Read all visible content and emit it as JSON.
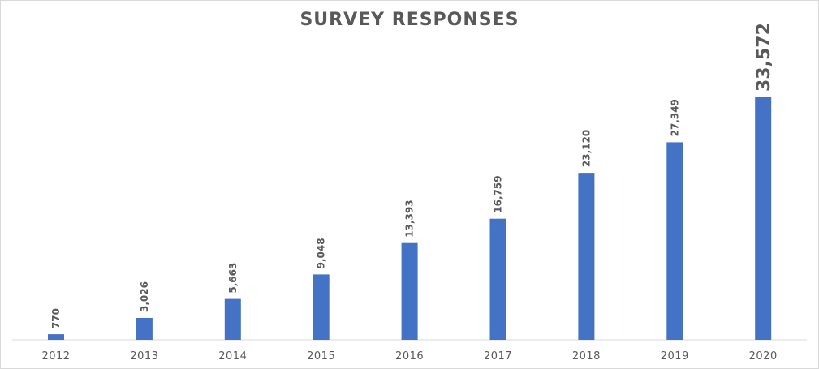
{
  "chart_data": {
    "type": "bar",
    "title": "SURVEY RESPONSES",
    "xlabel": "",
    "ylabel": "",
    "categories": [
      "2012",
      "2013",
      "2014",
      "2015",
      "2016",
      "2017",
      "2018",
      "2019",
      "2020"
    ],
    "values": [
      770,
      3026,
      5663,
      9048,
      13393,
      16759,
      23120,
      27349,
      33572
    ],
    "data_labels": [
      "770",
      "3,026",
      "5,663",
      "9,048",
      "13,393",
      "16,759",
      "23,120",
      "27,349",
      "33,572"
    ],
    "ylim": [
      0,
      37500
    ],
    "grid": false,
    "legend": "none",
    "colors": {
      "bar": "#4472c4",
      "axis": "#d9d9d9",
      "label_text": "#595959",
      "title": "#595959"
    }
  }
}
